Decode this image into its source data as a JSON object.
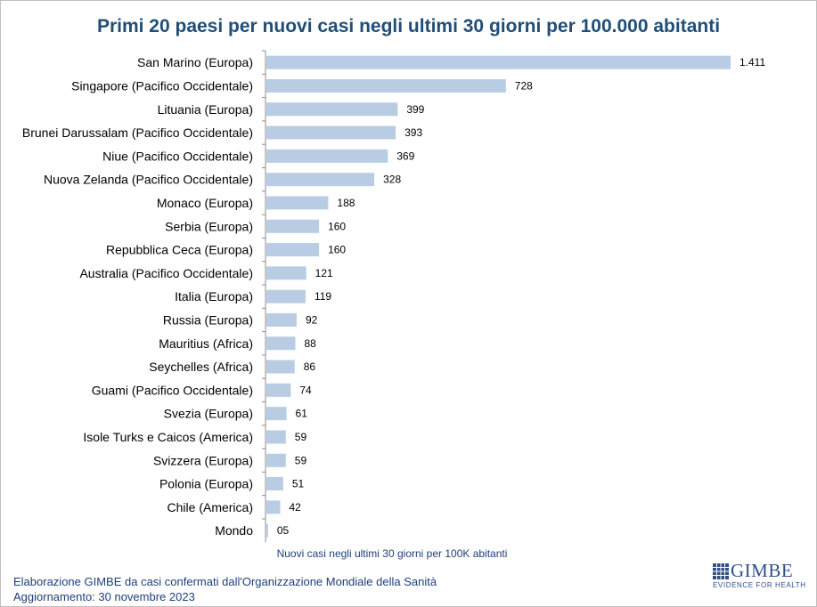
{
  "chart_data": {
    "type": "bar",
    "orientation": "horizontal",
    "title": "Primi 20 paesi per nuovi casi negli ultimi 30 giorni per 100.000 abitanti",
    "xlabel": "Nuovi casi negli ultimi 30 giorni per 100K abitanti",
    "categories": [
      "San Marino (Europa)",
      "Singapore (Pacifico Occidentale)",
      "Lituania (Europa)",
      "Brunei Darussalam (Pacifico Occidentale)",
      "Niue (Pacifico Occidentale)",
      "Nuova Zelanda (Pacifico Occidentale)",
      "Monaco (Europa)",
      "Serbia (Europa)",
      "Repubblica Ceca (Europa)",
      "Australia (Pacifico Occidentale)",
      "Italia (Europa)",
      "Russia (Europa)",
      "Mauritius (Africa)",
      "Seychelles (Africa)",
      "Guami (Pacifico Occidentale)",
      "Svezia (Europa)",
      "Isole Turks e Caicos (America)",
      "Svizzera (Europa)",
      "Polonia (Europa)",
      "Chile (America)",
      "Mondo"
    ],
    "values": [
      1411,
      728,
      399,
      393,
      369,
      328,
      188,
      160,
      160,
      121,
      119,
      92,
      88,
      86,
      74,
      61,
      59,
      59,
      51,
      42,
      5
    ],
    "value_labels": [
      "1.411",
      "728",
      "399",
      "393",
      "369",
      "328",
      "188",
      "160",
      "160",
      "121",
      "119",
      "92",
      "88",
      "86",
      "74",
      "61",
      "59",
      "59",
      "51",
      "42",
      "05"
    ],
    "xlim": [
      0,
      1411
    ],
    "bar_color": "#b8cce4",
    "grid": false,
    "legend": "none"
  },
  "footer": {
    "line1": "Elaborazione GIMBE da casi confermati dall'Organizzazione Mondiale della Sanità",
    "line2": "Aggiornamento: 30 novembre 2023"
  },
  "logo": {
    "word": "GIMBE",
    "tagline": "EVIDENCE FOR HEALTH",
    "color": "#2f4f8a"
  },
  "colors": {
    "title": "#1f4e79",
    "text": "#1f3f7a",
    "axis": "#8c8c8c"
  }
}
